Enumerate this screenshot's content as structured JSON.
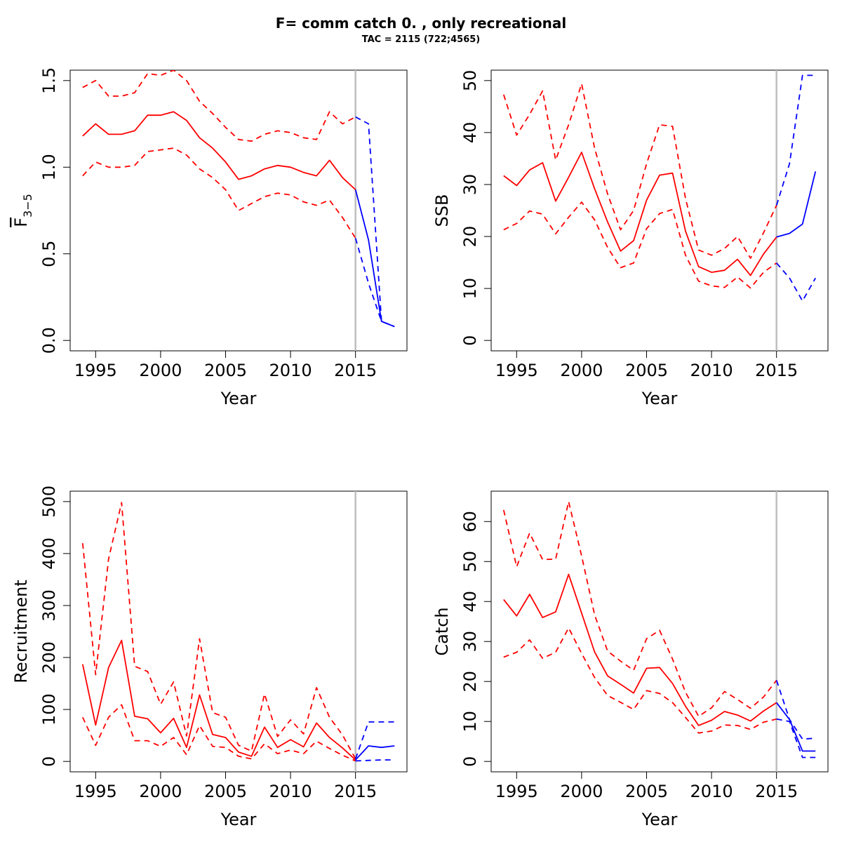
{
  "title": "F= comm catch 0. , only recreational",
  "subtitle": "TAC = 2115 (722;4565)",
  "colors": {
    "historic": "#ff0000",
    "forecast": "#0000ff",
    "divider": "#bebebe",
    "axis": "#000000"
  },
  "chart_data": [
    {
      "type": "line",
      "xlabel": "Year",
      "ylabel": {
        "main": "F",
        "sub": "3−5"
      },
      "xlim": [
        1994,
        2018
      ],
      "ylim": [
        0,
        1.5
      ],
      "xticks": [
        1995,
        2000,
        2005,
        2010,
        2015
      ],
      "yticks": [
        0.0,
        0.5,
        1.0,
        1.5
      ],
      "ytick_labels": [
        "0.0",
        "0.5",
        "1.0",
        "1.5"
      ],
      "divider_x": 2015,
      "historic": {
        "x": [
          1994,
          1995,
          1996,
          1997,
          1998,
          1999,
          2000,
          2001,
          2002,
          2003,
          2004,
          2005,
          2006,
          2007,
          2008,
          2009,
          2010,
          2011,
          2012,
          2013,
          2014,
          2015
        ],
        "median": [
          1.18,
          1.25,
          1.19,
          1.19,
          1.21,
          1.3,
          1.3,
          1.32,
          1.27,
          1.17,
          1.11,
          1.03,
          0.93,
          0.95,
          0.99,
          1.01,
          1.0,
          0.97,
          0.95,
          1.04,
          0.94,
          0.87
        ],
        "upper": [
          1.46,
          1.5,
          1.41,
          1.41,
          1.43,
          1.54,
          1.53,
          1.56,
          1.5,
          1.38,
          1.31,
          1.23,
          1.16,
          1.15,
          1.19,
          1.21,
          1.2,
          1.17,
          1.16,
          1.32,
          1.25,
          1.29
        ],
        "lower": [
          0.95,
          1.03,
          1.0,
          1.0,
          1.01,
          1.09,
          1.1,
          1.11,
          1.07,
          0.99,
          0.94,
          0.87,
          0.75,
          0.79,
          0.83,
          0.85,
          0.84,
          0.8,
          0.78,
          0.81,
          0.71,
          0.59
        ]
      },
      "forecast": {
        "x": [
          2015,
          2016,
          2017,
          2018
        ],
        "median": [
          0.87,
          0.58,
          0.11,
          0.08
        ],
        "upper": [
          1.29,
          1.25,
          0.11,
          0.08
        ],
        "lower": [
          0.59,
          0.33,
          0.11,
          0.08
        ]
      }
    },
    {
      "type": "line",
      "xlabel": "Year",
      "ylabel": {
        "main": "SSB"
      },
      "xlim": [
        1994,
        2018
      ],
      "ylim": [
        0,
        50
      ],
      "xticks": [
        1995,
        2000,
        2005,
        2010,
        2015
      ],
      "yticks": [
        0,
        10,
        20,
        30,
        40,
        50
      ],
      "ytick_labels": [
        "0",
        "10",
        "20",
        "30",
        "40",
        "50"
      ],
      "divider_x": 2015,
      "historic": {
        "x": [
          1994,
          1995,
          1996,
          1997,
          1998,
          1999,
          2000,
          2001,
          2002,
          2003,
          2004,
          2005,
          2006,
          2007,
          2008,
          2009,
          2010,
          2011,
          2012,
          2013,
          2014,
          2015
        ],
        "median": [
          31.7,
          29.8,
          32.8,
          34.2,
          26.8,
          31.4,
          36.2,
          29.2,
          22.8,
          17.2,
          19.2,
          27.0,
          31.8,
          32.2,
          21.0,
          14.2,
          13.1,
          13.5,
          15.6,
          12.5,
          16.6,
          19.9
        ],
        "upper": [
          47.3,
          39.5,
          43.5,
          48.0,
          34.7,
          41.5,
          49.4,
          37.0,
          28.2,
          21.3,
          25.0,
          34.0,
          41.5,
          41.2,
          27.3,
          17.4,
          16.4,
          17.7,
          20.0,
          15.8,
          20.7,
          26.0
        ],
        "lower": [
          21.3,
          22.5,
          24.9,
          24.3,
          20.5,
          23.7,
          26.6,
          23.2,
          17.9,
          14.0,
          14.9,
          21.5,
          24.4,
          25.2,
          16.4,
          11.4,
          10.5,
          10.2,
          12.2,
          10.1,
          13.1,
          14.9
        ]
      },
      "forecast": {
        "x": [
          2015,
          2016,
          2017,
          2018
        ],
        "median": [
          19.9,
          20.6,
          22.4,
          32.5
        ],
        "upper": [
          26.0,
          34.0,
          51.0,
          51.0
        ],
        "lower": [
          14.9,
          12.0,
          7.6,
          12.0
        ]
      }
    },
    {
      "type": "line",
      "xlabel": "Year",
      "ylabel": {
        "main": "Recruitment"
      },
      "xlim": [
        1994,
        2018
      ],
      "ylim": [
        0,
        500
      ],
      "xticks": [
        1995,
        2000,
        2005,
        2010,
        2015
      ],
      "yticks": [
        0,
        100,
        200,
        300,
        400,
        500
      ],
      "ytick_labels": [
        "0",
        "100",
        "200",
        "300",
        "400",
        "500"
      ],
      "divider_x": 2015,
      "historic": {
        "x": [
          1994,
          1995,
          1996,
          1997,
          1998,
          1999,
          2000,
          2001,
          2002,
          2003,
          2004,
          2005,
          2006,
          2007,
          2008,
          2009,
          2010,
          2011,
          2012,
          2013,
          2014,
          2015
        ],
        "median": [
          187,
          70,
          181,
          233,
          87,
          82,
          55,
          83,
          27,
          128,
          52,
          46,
          18,
          10,
          66,
          27,
          42,
          28,
          74,
          46,
          26,
          3
        ],
        "upper": [
          420,
          167,
          390,
          498,
          183,
          173,
          110,
          153,
          49,
          236,
          94,
          85,
          31,
          20,
          130,
          48,
          80,
          53,
          142,
          85,
          51,
          5
        ],
        "lower": [
          85,
          31,
          85,
          109,
          40,
          40,
          29,
          46,
          13,
          69,
          29,
          27,
          10,
          5,
          34,
          15,
          22,
          15,
          39,
          25,
          12,
          1
        ]
      },
      "forecast": {
        "x": [
          2015,
          2016,
          2017,
          2018
        ],
        "median": [
          3,
          30,
          27,
          30
        ],
        "upper": [
          5,
          76,
          76,
          76
        ],
        "lower": [
          1,
          2,
          3,
          3
        ]
      }
    },
    {
      "type": "line",
      "xlabel": "Year",
      "ylabel": {
        "main": "Catch"
      },
      "xlim": [
        1994,
        2018
      ],
      "ylim": [
        0,
        65
      ],
      "xticks": [
        1995,
        2000,
        2005,
        2010,
        2015
      ],
      "yticks": [
        0,
        10,
        20,
        30,
        40,
        50,
        60
      ],
      "ytick_labels": [
        "0",
        "10",
        "20",
        "30",
        "40",
        "50",
        "60"
      ],
      "divider_x": 2015,
      "historic": {
        "x": [
          1994,
          1995,
          1996,
          1997,
          1998,
          1999,
          2000,
          2001,
          2002,
          2003,
          2004,
          2005,
          2006,
          2007,
          2008,
          2009,
          2010,
          2011,
          2012,
          2013,
          2014,
          2015
        ],
        "median": [
          40.5,
          36.4,
          41.8,
          36.0,
          37.4,
          46.8,
          37.1,
          27.4,
          21.4,
          19.3,
          17.1,
          23.3,
          23.5,
          19.5,
          13.8,
          9.0,
          10.3,
          12.5,
          11.6,
          10.1,
          12.6,
          14.7
        ],
        "upper": [
          62.9,
          48.7,
          57.1,
          50.5,
          50.6,
          65.0,
          51.4,
          36.7,
          27.6,
          25.1,
          22.8,
          30.7,
          32.8,
          25.6,
          17.3,
          11.3,
          13.4,
          17.5,
          15.5,
          13.3,
          16.1,
          20.3
        ],
        "lower": [
          26.1,
          27.3,
          30.4,
          25.8,
          27.3,
          33.4,
          27.0,
          21.0,
          16.5,
          14.8,
          13.0,
          17.7,
          17.0,
          14.7,
          11.0,
          7.1,
          7.6,
          9.1,
          9.0,
          8.0,
          9.8,
          10.6
        ]
      },
      "forecast": {
        "x": [
          2015,
          2016,
          2017,
          2018
        ],
        "median": [
          14.7,
          10.5,
          2.6,
          2.6
        ],
        "upper": [
          20.3,
          10.5,
          5.6,
          5.8
        ],
        "lower": [
          10.6,
          10.0,
          1.0,
          1.0
        ]
      }
    }
  ]
}
